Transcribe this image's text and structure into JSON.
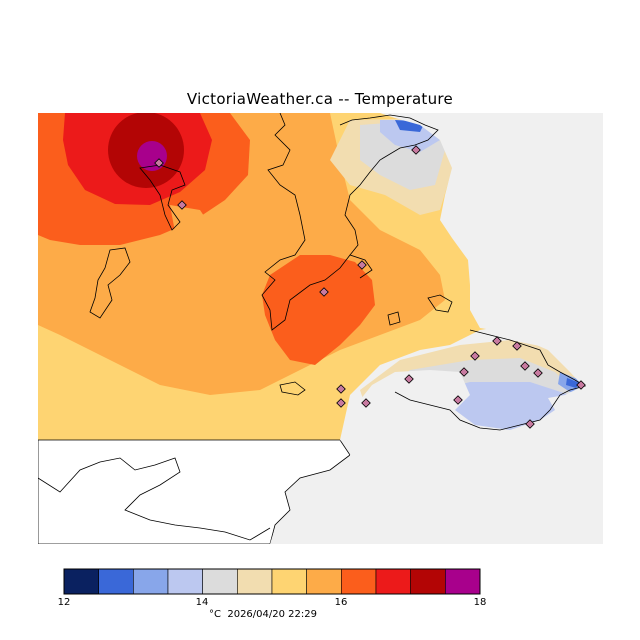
{
  "title": "VictoriaWeather.ca -- Temperature",
  "colors": {
    "ocean": "#f0f0f0",
    "land": "#ffffff",
    "coast": "#000000",
    "station_fill": "#c87aa0"
  },
  "legend": {
    "unit": "°C",
    "timestamp": "2026/04/20 22:29",
    "labels": [
      "12",
      "14",
      "16",
      "18"
    ],
    "bins": [
      {
        "from": 12.0,
        "to": 12.5,
        "color": "#0a2160"
      },
      {
        "from": 12.5,
        "to": 13.0,
        "color": "#3a68d8"
      },
      {
        "from": 13.0,
        "to": 13.5,
        "color": "#88a6ea"
      },
      {
        "from": 13.5,
        "to": 14.0,
        "color": "#bcc8f0"
      },
      {
        "from": 14.0,
        "to": 14.5,
        "color": "#dcdcdc"
      },
      {
        "from": 14.5,
        "to": 15.0,
        "color": "#f2ddb0"
      },
      {
        "from": 15.0,
        "to": 15.5,
        "color": "#fed472"
      },
      {
        "from": 15.5,
        "to": 16.0,
        "color": "#fdab48"
      },
      {
        "from": 16.0,
        "to": 16.5,
        "color": "#fb5e1c"
      },
      {
        "from": 16.5,
        "to": 17.0,
        "color": "#ec1a1a"
      },
      {
        "from": 17.0,
        "to": 17.5,
        "color": "#b30505"
      },
      {
        "from": 17.5,
        "to": 18.0,
        "color": "#a8008c"
      }
    ]
  }
}
